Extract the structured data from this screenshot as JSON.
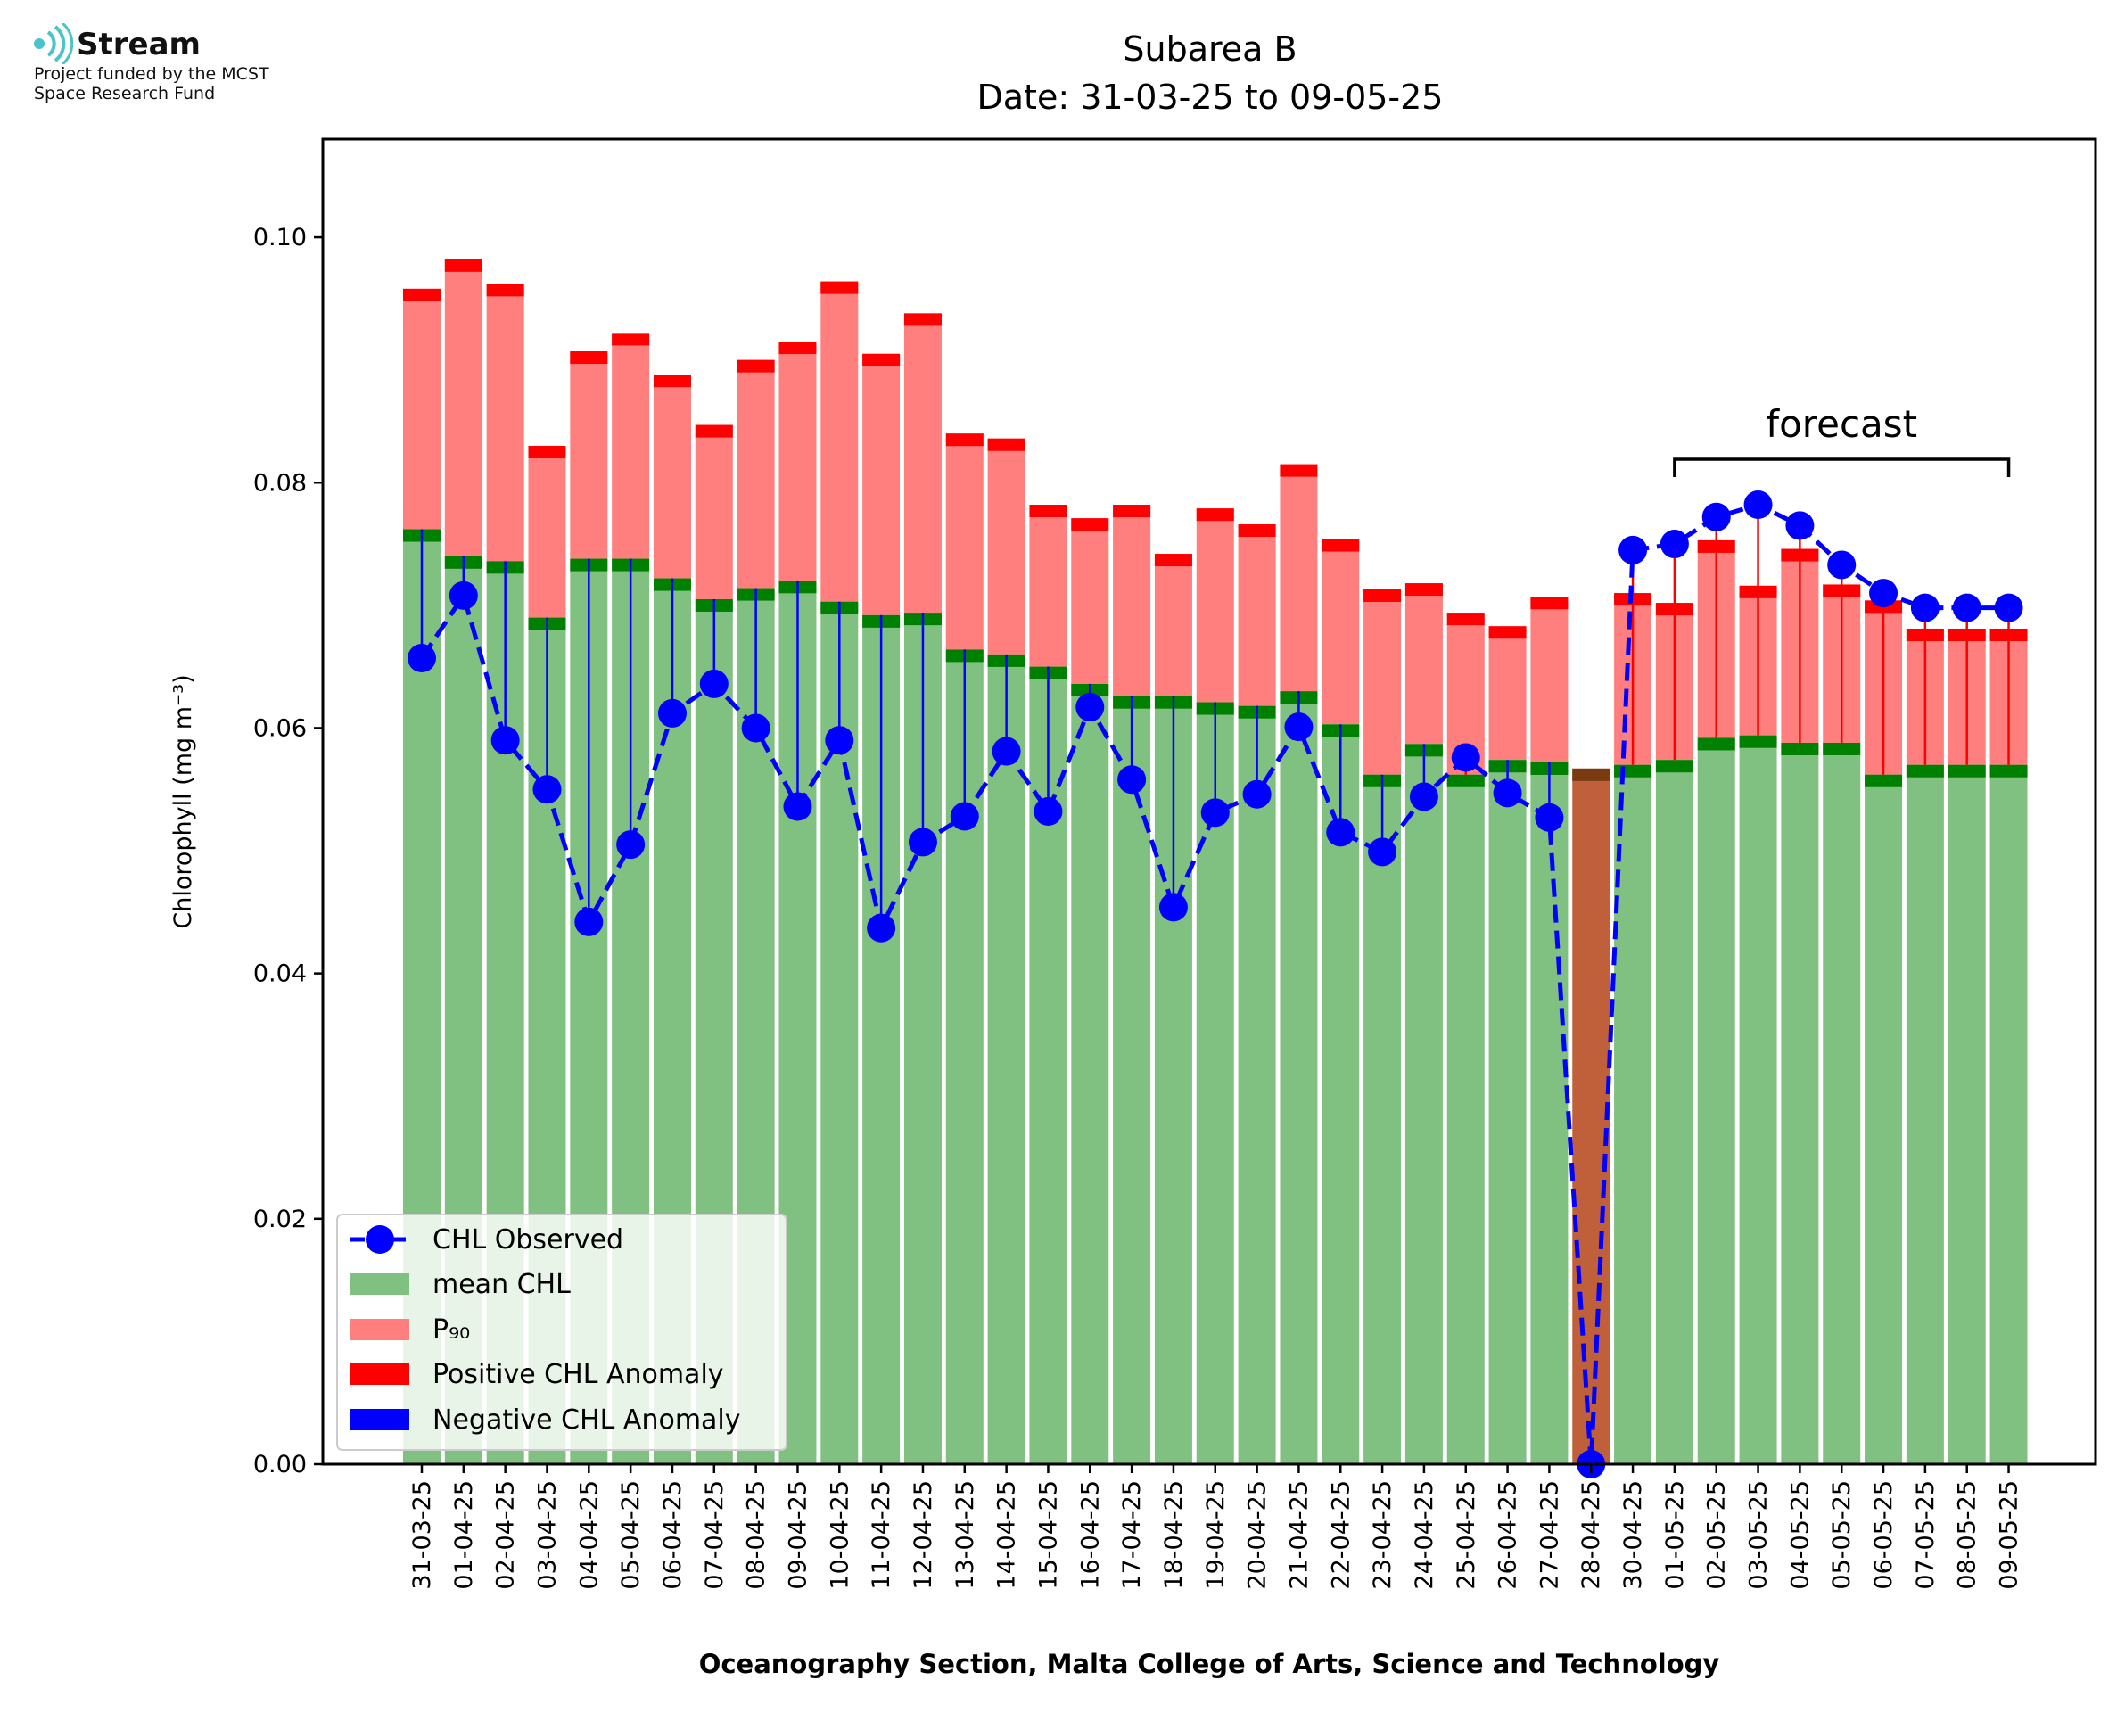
{
  "branding": {
    "logo_name": "Stream",
    "funding_line_1": "Project funded by the MCST",
    "funding_line_2": "Space Research Fund"
  },
  "colors": {
    "mean": "#80c080",
    "p90": "#ff7f7f",
    "positive_anomaly": "#ff0000",
    "negative_anomaly": "#0000ff",
    "mean_cap": "#008000",
    "missing_bar": "#c0603a",
    "missing_cap": "#7a3b10",
    "observed": "#0000ff",
    "logo_accent": "#49c5c9"
  },
  "chart_data": {
    "type": "bar",
    "title": "Subarea B",
    "subtitle": "Date: 31-03-25 to 09-05-25",
    "xlabel": "Oceanography Section, Malta College of Arts, Science and Technology",
    "ylabel": "Chlorophyll (mg m⁻³)",
    "ylim": [
      0,
      0.108
    ],
    "yticks": [
      "0.00",
      "0.02",
      "0.04",
      "0.06",
      "0.08",
      "0.10"
    ],
    "grid": false,
    "legend_position": "lower-left",
    "forecast_label": "forecast",
    "forecast_range": [
      "01-05-25",
      "09-05-25"
    ],
    "categories": [
      "31-03-25",
      "01-04-25",
      "02-04-25",
      "03-04-25",
      "04-04-25",
      "05-04-25",
      "06-04-25",
      "07-04-25",
      "08-04-25",
      "09-04-25",
      "10-04-25",
      "11-04-25",
      "12-04-25",
      "13-04-25",
      "14-04-25",
      "15-04-25",
      "16-04-25",
      "17-04-25",
      "18-04-25",
      "19-04-25",
      "20-04-25",
      "21-04-25",
      "22-04-25",
      "23-04-25",
      "24-04-25",
      "25-04-25",
      "26-04-25",
      "27-04-25",
      "28-04-25",
      "30-04-25",
      "01-05-25",
      "02-05-25",
      "03-05-25",
      "04-05-25",
      "05-05-25",
      "06-05-25",
      "07-05-25",
      "08-05-25",
      "09-05-25"
    ],
    "series": [
      {
        "name": "mean CHL",
        "values": [
          0.0762,
          0.074,
          0.0736,
          0.069,
          0.0738,
          0.0738,
          0.0722,
          0.0705,
          0.0714,
          0.072,
          0.0703,
          0.0692,
          0.0694,
          0.0664,
          0.066,
          0.065,
          0.0636,
          0.0626,
          0.0626,
          0.0621,
          0.0618,
          0.063,
          0.0603,
          0.0562,
          0.0587,
          0.0562,
          0.0574,
          0.0572,
          0.0567,
          0.057,
          0.0574,
          0.0592,
          0.0594,
          0.0588,
          0.0588,
          0.0562,
          0.057,
          0.057,
          0.057
        ]
      },
      {
        "name": "P₉₀",
        "values": [
          0.0958,
          0.0982,
          0.0962,
          0.083,
          0.0907,
          0.0922,
          0.0888,
          0.0847,
          0.09,
          0.0915,
          0.0964,
          0.0905,
          0.0938,
          0.084,
          0.0836,
          0.0782,
          0.0771,
          0.0782,
          0.0742,
          0.0779,
          0.0766,
          0.0815,
          0.0754,
          0.0713,
          0.0718,
          0.0694,
          0.0683,
          0.0707,
          0.0567,
          0.071,
          0.0702,
          0.0753,
          0.0716,
          0.0746,
          0.0717,
          0.0704,
          0.0681,
          0.0681,
          0.0681
        ]
      },
      {
        "name": "CHL Observed",
        "values": [
          0.0657,
          0.0708,
          0.059,
          0.055,
          0.0442,
          0.0505,
          0.0612,
          0.0636,
          0.06,
          0.0536,
          0.059,
          0.0437,
          0.0507,
          0.0528,
          0.0581,
          0.0532,
          0.0617,
          0.0558,
          0.0454,
          0.0531,
          0.0546,
          0.0601,
          0.0515,
          0.0499,
          0.0544,
          0.0576,
          0.0547,
          0.0527,
          0.0,
          0.0745,
          0.075,
          0.0772,
          0.0782,
          0.0765,
          0.0733,
          0.071,
          0.0698,
          0.0698,
          0.0698
        ]
      }
    ],
    "missing_categories": [
      "28-04-25"
    ],
    "legend": [
      "CHL Observed",
      "mean CHL",
      "P₉₀",
      "Positive CHL Anomaly",
      "Negative CHL Anomaly"
    ]
  }
}
